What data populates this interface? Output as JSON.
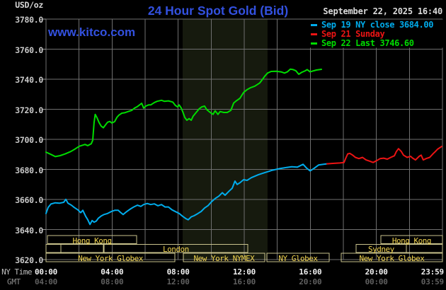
{
  "header": {
    "unit_label": "USD/oz",
    "title": "24 Hour Spot Gold (Bid)",
    "datetime": "September 22, 2025 16:40",
    "watermark": "www.kitco.com"
  },
  "legend": {
    "items": [
      {
        "label": "Sep 19 NY close 3684.00",
        "color": "#00ACEC"
      },
      {
        "label": "Sep 21 Sunday",
        "color": "#EC1414"
      },
      {
        "label": "Sep 22 Last 3746.60",
        "color": "#00DC00"
      }
    ]
  },
  "y_axis": {
    "labels": [
      "3780.0",
      "3760.0",
      "3740.0",
      "3720.0",
      "3700.0",
      "3680.0",
      "3660.0",
      "3640.0",
      "3620.0"
    ],
    "min": 3620,
    "max": 3780,
    "step": 20
  },
  "x_axis": {
    "ny_caption": "NY Time",
    "gmt_caption": "GMT",
    "hours": [
      0,
      4,
      8,
      12,
      16,
      20,
      24
    ],
    "ny_labels": [
      "00:00",
      "04:00",
      "08:00",
      "12:00",
      "16:00",
      "20:00",
      "23:59"
    ],
    "gmt_labels": [
      "04:00",
      "08:00",
      "12:00",
      "16:00",
      "20:00",
      "00:00",
      "03:59"
    ]
  },
  "sessions": {
    "rows": [
      [
        {
          "label": "Hong Kong",
          "start": 0.09,
          "end": 5.49
        },
        {
          "label": "Hong Kong",
          "start": 20.27,
          "end": 24
        }
      ],
      [
        {
          "label": "",
          "start": 0,
          "end": 0.9
        },
        {
          "label": "",
          "start": 0.9,
          "end": 3.47
        },
        {
          "label": "London",
          "start": 3.51,
          "end": 12.21
        },
        {
          "label": "Sydney",
          "start": 18.77,
          "end": 21.81
        },
        {
          "label": "",
          "start": 21.81,
          "end": 24
        }
      ],
      [
        {
          "label": "New York Globex",
          "start": 0,
          "end": 7.8
        },
        {
          "label": "New York NYMEX",
          "start": 8.31,
          "end": 13.24
        },
        {
          "label": "NY Globex",
          "start": 13.37,
          "end": 17.14
        },
        {
          "label": "New York Globex",
          "start": 17.87,
          "end": 24
        }
      ]
    ]
  },
  "chart_data": {
    "type": "line",
    "title": "24 Hour Spot Gold (Bid)",
    "xlabel": "NY Time (hours)",
    "ylabel": "USD/oz",
    "x_range_hours": [
      0,
      24
    ],
    "ylim": [
      3620,
      3780
    ],
    "grid": {
      "x_step_hours": 2,
      "y_step": 20
    },
    "legend_position": "top-right",
    "shaded_band_hours": {
      "start": 8.27,
      "end": 13.41
    },
    "series": [
      {
        "name": "Sep 19 NY close 3684.00",
        "color": "#00ACEC",
        "points": [
          [
            0,
            3650.7
          ],
          [
            0.13,
            3654.7
          ],
          [
            0.3,
            3657
          ],
          [
            0.56,
            3657.8
          ],
          [
            0.81,
            3657.5
          ],
          [
            1.07,
            3658.1
          ],
          [
            1.2,
            3660.1
          ],
          [
            1.33,
            3657.5
          ],
          [
            1.54,
            3656.2
          ],
          [
            1.71,
            3654.7
          ],
          [
            1.93,
            3653.1
          ],
          [
            2.1,
            3651.2
          ],
          [
            2.23,
            3652.8
          ],
          [
            2.4,
            3648.8
          ],
          [
            2.53,
            3646.5
          ],
          [
            2.66,
            3643.4
          ],
          [
            2.79,
            3646
          ],
          [
            2.91,
            3644.9
          ],
          [
            3.04,
            3645.6
          ],
          [
            3.17,
            3647.6
          ],
          [
            3.34,
            3649
          ],
          [
            3.51,
            3650
          ],
          [
            3.73,
            3650.7
          ],
          [
            3.94,
            3651.9
          ],
          [
            4.16,
            3652.8
          ],
          [
            4.37,
            3652.8
          ],
          [
            4.5,
            3651.5
          ],
          [
            4.67,
            3650
          ],
          [
            4.8,
            3651.2
          ],
          [
            4.97,
            3652.6
          ],
          [
            5.14,
            3653.9
          ],
          [
            5.31,
            3655
          ],
          [
            5.53,
            3656.2
          ],
          [
            5.74,
            3655.4
          ],
          [
            5.91,
            3656.6
          ],
          [
            6.13,
            3657.3
          ],
          [
            6.34,
            3656.6
          ],
          [
            6.56,
            3657.1
          ],
          [
            6.77,
            3655.8
          ],
          [
            6.99,
            3656.6
          ],
          [
            7.2,
            3655
          ],
          [
            7.41,
            3655
          ],
          [
            7.63,
            3653.1
          ],
          [
            7.84,
            3651.9
          ],
          [
            8.06,
            3650.7
          ],
          [
            8.27,
            3648.8
          ],
          [
            8.49,
            3647.1
          ],
          [
            8.61,
            3646.5
          ],
          [
            8.79,
            3648.4
          ],
          [
            8.96,
            3649.2
          ],
          [
            9.17,
            3650.5
          ],
          [
            9.39,
            3652
          ],
          [
            9.6,
            3654.3
          ],
          [
            9.81,
            3655.9
          ],
          [
            10.03,
            3658.6
          ],
          [
            10.24,
            3660.6
          ],
          [
            10.46,
            3662.2
          ],
          [
            10.67,
            3664.5
          ],
          [
            10.84,
            3662.8
          ],
          [
            11.06,
            3665.3
          ],
          [
            11.27,
            3667.5
          ],
          [
            11.44,
            3672.2
          ],
          [
            11.57,
            3670
          ],
          [
            11.74,
            3671.1
          ],
          [
            11.96,
            3673.2
          ],
          [
            12.17,
            3672.7
          ],
          [
            12.43,
            3674.5
          ],
          [
            12.86,
            3676.5
          ],
          [
            13.29,
            3678
          ],
          [
            13.71,
            3679.5
          ],
          [
            14.14,
            3680.5
          ],
          [
            14.57,
            3681.3
          ],
          [
            14.87,
            3681.8
          ],
          [
            15.21,
            3681.5
          ],
          [
            15.56,
            3683.4
          ],
          [
            15.77,
            3680.9
          ],
          [
            15.99,
            3679
          ],
          [
            16.2,
            3680.5
          ],
          [
            16.5,
            3682.9
          ],
          [
            16.8,
            3683.4
          ],
          [
            17.01,
            3683.7
          ]
        ]
      },
      {
        "name": "Sep 21 Sunday",
        "color": "#EC1414",
        "points": [
          [
            17.01,
            3683.7
          ],
          [
            17.36,
            3684
          ],
          [
            17.79,
            3684.3
          ],
          [
            18.04,
            3684.6
          ],
          [
            18.13,
            3687
          ],
          [
            18.26,
            3690.3
          ],
          [
            18.39,
            3690.7
          ],
          [
            18.56,
            3689.5
          ],
          [
            18.73,
            3688
          ],
          [
            18.94,
            3687.2
          ],
          [
            19.16,
            3688
          ],
          [
            19.37,
            3686.3
          ],
          [
            19.59,
            3685.5
          ],
          [
            19.8,
            3684.6
          ],
          [
            20.01,
            3685.8
          ],
          [
            20.23,
            3687.2
          ],
          [
            20.44,
            3687.5
          ],
          [
            20.66,
            3686.8
          ],
          [
            20.87,
            3688
          ],
          [
            21.09,
            3689.1
          ],
          [
            21.21,
            3691.9
          ],
          [
            21.34,
            3693.8
          ],
          [
            21.51,
            3691.9
          ],
          [
            21.64,
            3689.5
          ],
          [
            21.86,
            3688
          ],
          [
            22.07,
            3688.7
          ],
          [
            22.2,
            3687.5
          ],
          [
            22.37,
            3686.3
          ],
          [
            22.59,
            3688.7
          ],
          [
            22.71,
            3689.5
          ],
          [
            22.84,
            3686.3
          ],
          [
            23.01,
            3687.2
          ],
          [
            23.23,
            3688
          ],
          [
            23.44,
            3690.5
          ],
          [
            23.57,
            3691.9
          ],
          [
            23.7,
            3693.4
          ],
          [
            23.87,
            3694.7
          ],
          [
            23.96,
            3695.3
          ]
        ]
      },
      {
        "name": "Sep 22 Last 3746.60",
        "color": "#00DC00",
        "points": [
          [
            0,
            3691.5
          ],
          [
            0.3,
            3690
          ],
          [
            0.56,
            3688.5
          ],
          [
            0.86,
            3689.2
          ],
          [
            1.16,
            3690.3
          ],
          [
            1.5,
            3691.9
          ],
          [
            1.76,
            3693.6
          ],
          [
            2.01,
            3695.4
          ],
          [
            2.36,
            3696.6
          ],
          [
            2.53,
            3695.8
          ],
          [
            2.74,
            3697.1
          ],
          [
            2.83,
            3699.4
          ],
          [
            2.91,
            3711.2
          ],
          [
            2.98,
            3716.6
          ],
          [
            3.09,
            3714.3
          ],
          [
            3.21,
            3711.2
          ],
          [
            3.34,
            3708.8
          ],
          [
            3.47,
            3707.7
          ],
          [
            3.6,
            3709.6
          ],
          [
            3.73,
            3711.4
          ],
          [
            3.86,
            3711.9
          ],
          [
            3.99,
            3710.8
          ],
          [
            4.16,
            3711.9
          ],
          [
            4.29,
            3714.6
          ],
          [
            4.41,
            3716.1
          ],
          [
            4.59,
            3717.4
          ],
          [
            4.76,
            3717.7
          ],
          [
            4.97,
            3718.5
          ],
          [
            5.19,
            3719.3
          ],
          [
            5.36,
            3720.8
          ],
          [
            5.53,
            3721.8
          ],
          [
            5.7,
            3723.2
          ],
          [
            5.79,
            3724
          ],
          [
            5.91,
            3720.8
          ],
          [
            6.04,
            3722.1
          ],
          [
            6.21,
            3722.9
          ],
          [
            6.34,
            3722.9
          ],
          [
            6.56,
            3724.5
          ],
          [
            6.73,
            3725.3
          ],
          [
            6.99,
            3726
          ],
          [
            7.16,
            3725.3
          ],
          [
            7.41,
            3725.6
          ],
          [
            7.67,
            3724.8
          ],
          [
            7.84,
            3722.5
          ],
          [
            7.97,
            3721.6
          ],
          [
            8.06,
            3722.9
          ],
          [
            8.19,
            3720.8
          ],
          [
            8.31,
            3717.4
          ],
          [
            8.4,
            3714.6
          ],
          [
            8.53,
            3712.7
          ],
          [
            8.66,
            3713.8
          ],
          [
            8.79,
            3712.7
          ],
          [
            8.91,
            3715.5
          ],
          [
            9.09,
            3717.9
          ],
          [
            9.26,
            3720.2
          ],
          [
            9.43,
            3721.6
          ],
          [
            9.6,
            3722.1
          ],
          [
            9.73,
            3719.8
          ],
          [
            9.9,
            3718.2
          ],
          [
            10.11,
            3716.6
          ],
          [
            10.24,
            3719
          ],
          [
            10.41,
            3716.6
          ],
          [
            10.54,
            3718.5
          ],
          [
            10.76,
            3717.9
          ],
          [
            10.97,
            3717.9
          ],
          [
            11.19,
            3719.3
          ],
          [
            11.36,
            3724.2
          ],
          [
            11.53,
            3725.7
          ],
          [
            11.74,
            3727.3
          ],
          [
            11.96,
            3731.2
          ],
          [
            12.17,
            3733.1
          ],
          [
            12.39,
            3734.4
          ],
          [
            12.64,
            3735.4
          ],
          [
            12.94,
            3737.5
          ],
          [
            13.07,
            3739.4
          ],
          [
            13.24,
            3742
          ],
          [
            13.41,
            3744.1
          ],
          [
            13.63,
            3745.2
          ],
          [
            13.93,
            3745.3
          ],
          [
            14.23,
            3744.9
          ],
          [
            14.44,
            3744.1
          ],
          [
            14.61,
            3744.9
          ],
          [
            14.79,
            3746.7
          ],
          [
            14.96,
            3746.4
          ],
          [
            15.13,
            3745.6
          ],
          [
            15.3,
            3743.3
          ],
          [
            15.47,
            3744.5
          ],
          [
            15.69,
            3745.6
          ],
          [
            15.81,
            3746.4
          ],
          [
            15.99,
            3744.9
          ],
          [
            16.2,
            3745.6
          ],
          [
            16.37,
            3746.1
          ],
          [
            16.67,
            3746.6
          ]
        ]
      }
    ]
  },
  "colors": {
    "background": "#000000",
    "grid": "#6F6F6F",
    "tick": "#9A9A9A",
    "shaded_band": "#161A0E",
    "session_border": "#C9C28C",
    "session_text": "#EFD24F",
    "title_blue": "#3351E0"
  }
}
